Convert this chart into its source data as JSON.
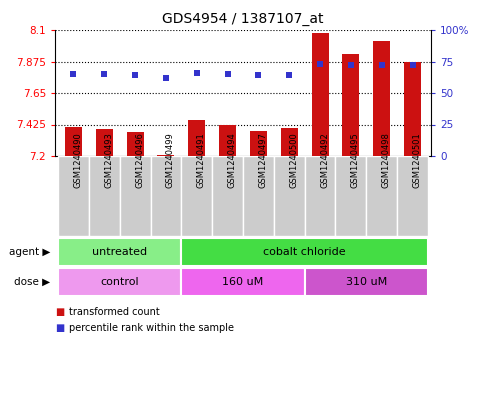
{
  "title": "GDS4954 / 1387107_at",
  "samples": [
    "GSM1240490",
    "GSM1240493",
    "GSM1240496",
    "GSM1240499",
    "GSM1240491",
    "GSM1240494",
    "GSM1240497",
    "GSM1240500",
    "GSM1240492",
    "GSM1240495",
    "GSM1240498",
    "GSM1240501"
  ],
  "bar_values": [
    7.41,
    7.39,
    7.37,
    7.21,
    7.46,
    7.42,
    7.38,
    7.4,
    8.08,
    7.93,
    8.02,
    7.87
  ],
  "percentile_values": [
    65,
    65,
    64,
    62,
    66,
    65,
    64,
    64,
    73,
    72,
    72,
    72
  ],
  "y_min": 7.2,
  "y_max": 8.1,
  "y_ticks": [
    7.2,
    7.425,
    7.65,
    7.875,
    8.1
  ],
  "y_tick_labels": [
    "7.2",
    "7.425",
    "7.65",
    "7.875",
    "8.1"
  ],
  "y2_ticks": [
    0,
    25,
    50,
    75,
    100
  ],
  "y2_tick_labels": [
    "0",
    "25",
    "50",
    "75",
    "100%"
  ],
  "bar_color": "#cc1111",
  "blue_color": "#3333cc",
  "agent_groups": [
    {
      "label": "untreated",
      "start": 0,
      "end": 4,
      "color": "#88ee88"
    },
    {
      "label": "cobalt chloride",
      "start": 4,
      "end": 12,
      "color": "#44dd44"
    }
  ],
  "dose_groups": [
    {
      "label": "control",
      "start": 0,
      "end": 4,
      "color": "#ee99ee"
    },
    {
      "label": "160 uM",
      "start": 4,
      "end": 8,
      "color": "#ee66ee"
    },
    {
      "label": "310 uM",
      "start": 8,
      "end": 12,
      "color": "#cc55cc"
    }
  ],
  "legend_items": [
    {
      "label": "transformed count",
      "color": "#cc1111"
    },
    {
      "label": "percentile rank within the sample",
      "color": "#3333cc"
    }
  ],
  "sample_bg_color": "#cccccc",
  "title_fontsize": 10,
  "bar_width": 0.55
}
